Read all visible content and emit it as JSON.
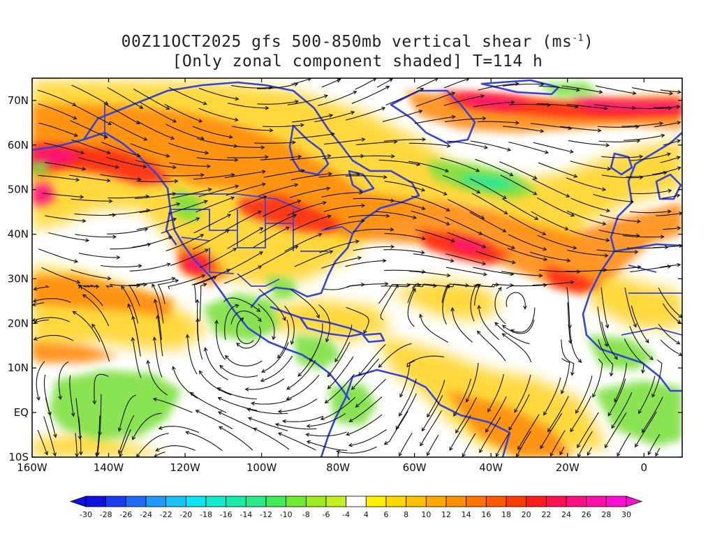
{
  "title": {
    "line1_prefix": "00Z11OCT2025 gfs 500-850mb vertical shear (ms",
    "line1_sup": "-1",
    "line1_suffix": ")",
    "line2": "[Only zonal component shaded] T=114 h"
  },
  "map": {
    "region": "North Atlantic / Americas / West Africa",
    "lon_range": [
      -160,
      10
    ],
    "lat_range": [
      -10,
      75
    ],
    "field": "500-850mb vertical shear",
    "shaded_component": "zonal",
    "overlay": "shear streamlines",
    "boundaries_color": "#3344dd",
    "lat_labels": [
      "70N",
      "60N",
      "50N",
      "40N",
      "30N",
      "20N",
      "10N",
      "EQ",
      "10S"
    ],
    "lon_labels": [
      "160W",
      "140W",
      "120W",
      "100W",
      "80W",
      "60W",
      "40W",
      "20W",
      "0"
    ]
  },
  "colorbar": {
    "labels": [
      "-30",
      "-28",
      "-26",
      "-24",
      "-22",
      "-20",
      "-18",
      "-16",
      "-14",
      "-12",
      "-10",
      "-8",
      "-6",
      "-4",
      "4",
      "6",
      "8",
      "10",
      "12",
      "14",
      "16",
      "18",
      "20",
      "22",
      "24",
      "26",
      "28",
      "30"
    ],
    "colors": [
      "#1010e0",
      "#1a3cf0",
      "#1e6cf8",
      "#209af8",
      "#18c4f4",
      "#10e4f0",
      "#10ecd0",
      "#18eca8",
      "#28ec88",
      "#40ec58",
      "#70ec30",
      "#9cec20",
      "#c4f020",
      "#ffffff",
      "#fff000",
      "#ffd800",
      "#ffc000",
      "#ffa800",
      "#ff9000",
      "#ff7400",
      "#ff5a00",
      "#ff3c00",
      "#ff1c1c",
      "#ff1050",
      "#ff1080",
      "#ff10a8",
      "#ff10d0"
    ],
    "under_color": "#1010e0",
    "over_color": "#ff10d0"
  }
}
